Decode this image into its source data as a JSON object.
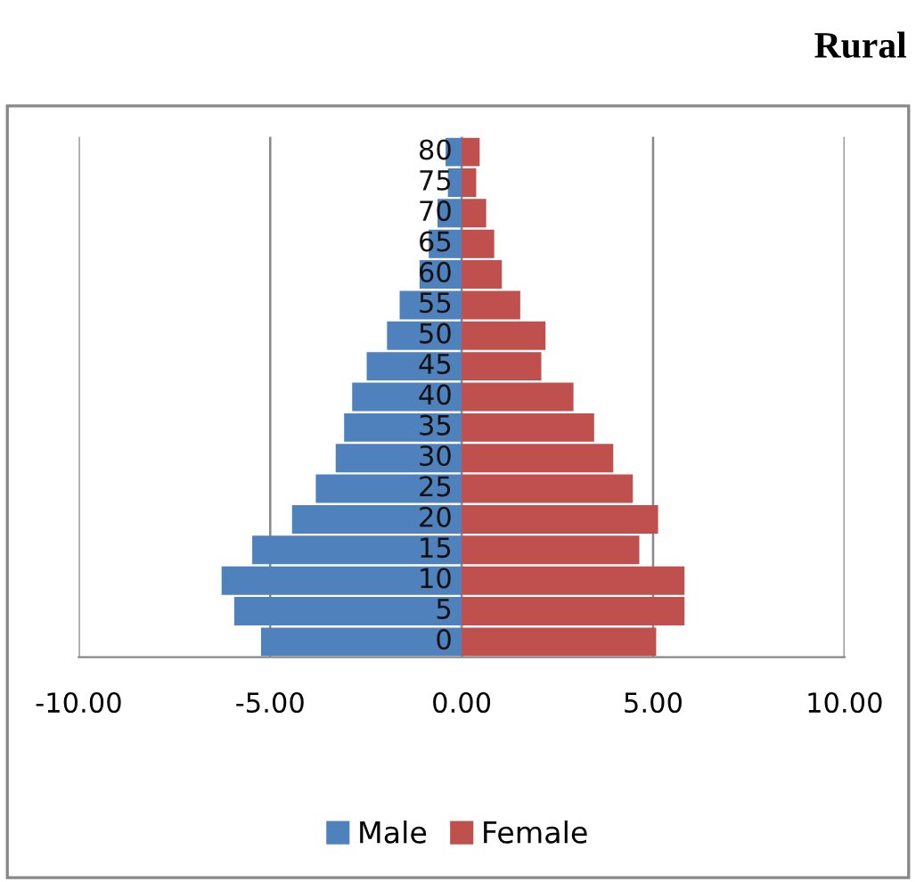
{
  "chart_data": {
    "type": "bar",
    "orientation": "horizontal",
    "stacked": true,
    "title": "Rural",
    "categories": [
      "80",
      "75",
      "70",
      "65",
      "60",
      "55",
      "50",
      "45",
      "40",
      "35",
      "30",
      "25",
      "20",
      "15",
      "10",
      "5",
      "0"
    ],
    "series": [
      {
        "name": "Male",
        "color": "#4f81bd",
        "values": [
          -0.42,
          -0.36,
          -0.63,
          -0.86,
          -1.1,
          -1.62,
          -1.95,
          -2.48,
          -2.86,
          -3.07,
          -3.29,
          -3.81,
          -4.43,
          -5.47,
          -6.27,
          -5.94,
          -5.24
        ]
      },
      {
        "name": "Female",
        "color": "#c0504d",
        "values": [
          0.47,
          0.38,
          0.64,
          0.85,
          1.05,
          1.53,
          2.19,
          2.08,
          2.92,
          3.46,
          3.96,
          4.47,
          5.13,
          4.64,
          5.82,
          5.82,
          5.08
        ]
      }
    ],
    "xlim": [
      -10,
      10
    ],
    "xticks": [
      {
        "value": -10,
        "label": "-10.00"
      },
      {
        "value": -5,
        "label": "-5.00"
      },
      {
        "value": 0,
        "label": "0.00"
      },
      {
        "value": 5,
        "label": "5.00"
      },
      {
        "value": 10,
        "label": "10.00"
      }
    ],
    "grid": "x",
    "legend": "bottom"
  }
}
